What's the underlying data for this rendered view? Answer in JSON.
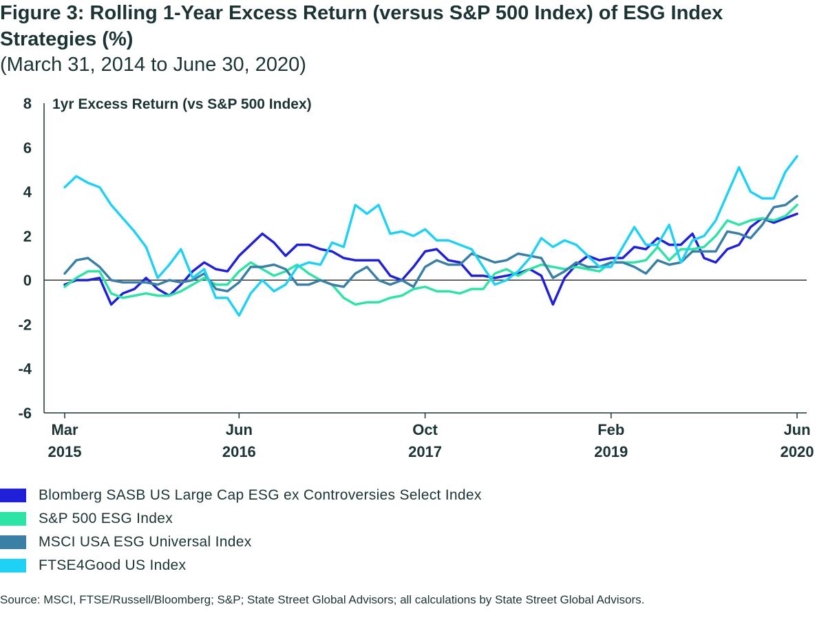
{
  "title": "Figure 3: Rolling 1-Year Excess Return (versus S&P 500 Index) of ESG Index Strategies (%)",
  "subtitle": "(March 31, 2014 to June 30, 2020)",
  "source": "Source: MSCI, FTSE/Russell/Bloomberg; S&P; State Street Global Advisors; all calculations by State Street Global Advisors.",
  "colors": {
    "axis": "#1b3333",
    "zero_line": "#333333"
  },
  "chart_data": {
    "type": "line",
    "title": "Figure 3: Rolling 1-Year Excess Return (versus S&P 500 Index) of ESG Index Strategies (%)",
    "ylabel": "1yr Excess Return (vs S&P 500 Index)",
    "ylim": [
      -6,
      8
    ],
    "yticks": [
      -6,
      -4,
      -2,
      0,
      2,
      4,
      6,
      8
    ],
    "xlim": [
      "2015-03",
      "2020-06"
    ],
    "xticks": [
      {
        "x": "2015-03",
        "label1": "Mar",
        "label2": "2015"
      },
      {
        "x": "2016-06",
        "label1": "Jun",
        "label2": "2016"
      },
      {
        "x": "2017-10",
        "label1": "Oct",
        "label2": "2017"
      },
      {
        "x": "2019-02",
        "label1": "Feb",
        "label2": "2019"
      },
      {
        "x": "2020-06",
        "label1": "Jun",
        "label2": "2020"
      }
    ],
    "grid": false,
    "legend_placement": "bottom",
    "series": [
      {
        "name": "Blomberg SASB US Large Cap ESG ex Controversies Select Index",
        "color": "#2020d8",
        "points": [
          [
            "2015-03",
            -0.2
          ],
          [
            "2015-04",
            0.0
          ],
          [
            "2015-05",
            0.0
          ],
          [
            "2015-06",
            0.1
          ],
          [
            "2015-07",
            -1.1
          ],
          [
            "2015-08",
            -0.6
          ],
          [
            "2015-09",
            -0.4
          ],
          [
            "2015-10",
            0.1
          ],
          [
            "2015-11",
            -0.4
          ],
          [
            "2015-12",
            -0.7
          ],
          [
            "2016-01",
            -0.2
          ],
          [
            "2016-02",
            0.4
          ],
          [
            "2016-03",
            0.8
          ],
          [
            "2016-04",
            0.5
          ],
          [
            "2016-05",
            0.4
          ],
          [
            "2016-06",
            1.1
          ],
          [
            "2016-07",
            1.6
          ],
          [
            "2016-08",
            2.1
          ],
          [
            "2016-09",
            1.7
          ],
          [
            "2016-10",
            1.1
          ],
          [
            "2016-11",
            1.6
          ],
          [
            "2016-12",
            1.6
          ],
          [
            "2017-01",
            1.4
          ],
          [
            "2017-02",
            1.3
          ],
          [
            "2017-03",
            1.0
          ],
          [
            "2017-04",
            0.9
          ],
          [
            "2017-05",
            0.9
          ],
          [
            "2017-06",
            0.9
          ],
          [
            "2017-07",
            0.2
          ],
          [
            "2017-08",
            0.0
          ],
          [
            "2017-09",
            0.6
          ],
          [
            "2017-10",
            1.3
          ],
          [
            "2017-11",
            1.4
          ],
          [
            "2017-12",
            0.9
          ],
          [
            "2018-01",
            0.8
          ],
          [
            "2018-02",
            0.2
          ],
          [
            "2018-03",
            0.2
          ],
          [
            "2018-04",
            0.1
          ],
          [
            "2018-05",
            0.2
          ],
          [
            "2018-06",
            0.3
          ],
          [
            "2018-07",
            0.5
          ],
          [
            "2018-08",
            0.2
          ],
          [
            "2018-09",
            -1.1
          ],
          [
            "2018-10",
            0.1
          ],
          [
            "2018-11",
            0.7
          ],
          [
            "2018-12",
            1.1
          ],
          [
            "2019-01",
            0.9
          ],
          [
            "2019-02",
            1.0
          ],
          [
            "2019-03",
            1.0
          ],
          [
            "2019-04",
            1.5
          ],
          [
            "2019-05",
            1.4
          ],
          [
            "2019-06",
            1.9
          ],
          [
            "2019-07",
            1.6
          ],
          [
            "2019-08",
            1.6
          ],
          [
            "2019-09",
            2.1
          ],
          [
            "2019-10",
            1.0
          ],
          [
            "2019-11",
            0.8
          ],
          [
            "2019-12",
            1.4
          ],
          [
            "2020-01",
            1.6
          ],
          [
            "2020-02",
            2.4
          ],
          [
            "2020-03",
            2.8
          ],
          [
            "2020-04",
            2.6
          ],
          [
            "2020-05",
            2.8
          ],
          [
            "2020-06",
            3.0
          ]
        ]
      },
      {
        "name": "S&P 500 ESG Index",
        "color": "#2ee3a6",
        "points": [
          [
            "2015-03",
            -0.3
          ],
          [
            "2015-04",
            0.1
          ],
          [
            "2015-05",
            0.4
          ],
          [
            "2015-06",
            0.4
          ],
          [
            "2015-07",
            -0.6
          ],
          [
            "2015-08",
            -0.8
          ],
          [
            "2015-09",
            -0.7
          ],
          [
            "2015-10",
            -0.6
          ],
          [
            "2015-11",
            -0.7
          ],
          [
            "2015-12",
            -0.7
          ],
          [
            "2016-01",
            -0.5
          ],
          [
            "2016-02",
            -0.2
          ],
          [
            "2016-03",
            0.1
          ],
          [
            "2016-04",
            -0.2
          ],
          [
            "2016-05",
            -0.2
          ],
          [
            "2016-06",
            0.4
          ],
          [
            "2016-07",
            0.8
          ],
          [
            "2016-08",
            0.5
          ],
          [
            "2016-09",
            0.2
          ],
          [
            "2016-10",
            0.4
          ],
          [
            "2016-11",
            0.7
          ],
          [
            "2016-12",
            0.3
          ],
          [
            "2017-01",
            0.0
          ],
          [
            "2017-02",
            -0.2
          ],
          [
            "2017-03",
            -0.8
          ],
          [
            "2017-04",
            -1.1
          ],
          [
            "2017-05",
            -1.0
          ],
          [
            "2017-06",
            -1.0
          ],
          [
            "2017-07",
            -0.8
          ],
          [
            "2017-08",
            -0.7
          ],
          [
            "2017-09",
            -0.4
          ],
          [
            "2017-10",
            -0.3
          ],
          [
            "2017-11",
            -0.5
          ],
          [
            "2017-12",
            -0.5
          ],
          [
            "2018-01",
            -0.6
          ],
          [
            "2018-02",
            -0.4
          ],
          [
            "2018-03",
            -0.4
          ],
          [
            "2018-04",
            0.3
          ],
          [
            "2018-05",
            0.5
          ],
          [
            "2018-06",
            0.2
          ],
          [
            "2018-07",
            0.5
          ],
          [
            "2018-08",
            0.7
          ],
          [
            "2018-09",
            0.6
          ],
          [
            "2018-10",
            0.5
          ],
          [
            "2018-11",
            0.6
          ],
          [
            "2018-12",
            0.5
          ],
          [
            "2019-01",
            0.4
          ],
          [
            "2019-02",
            0.8
          ],
          [
            "2019-03",
            0.8
          ],
          [
            "2019-04",
            0.8
          ],
          [
            "2019-05",
            0.9
          ],
          [
            "2019-06",
            1.5
          ],
          [
            "2019-07",
            0.9
          ],
          [
            "2019-08",
            1.4
          ],
          [
            "2019-09",
            1.4
          ],
          [
            "2019-10",
            1.5
          ],
          [
            "2019-11",
            2.0
          ],
          [
            "2019-12",
            2.7
          ],
          [
            "2020-01",
            2.5
          ],
          [
            "2020-02",
            2.7
          ],
          [
            "2020-03",
            2.8
          ],
          [
            "2020-04",
            2.7
          ],
          [
            "2020-05",
            2.9
          ],
          [
            "2020-06",
            3.4
          ]
        ]
      },
      {
        "name": "MSCI USA ESG Universal Index",
        "color": "#3a7fa6",
        "points": [
          [
            "2015-03",
            0.3
          ],
          [
            "2015-04",
            0.9
          ],
          [
            "2015-05",
            1.0
          ],
          [
            "2015-06",
            0.6
          ],
          [
            "2015-07",
            0.0
          ],
          [
            "2015-08",
            -0.1
          ],
          [
            "2015-09",
            -0.1
          ],
          [
            "2015-10",
            -0.1
          ],
          [
            "2015-11",
            -0.2
          ],
          [
            "2015-12",
            0.0
          ],
          [
            "2016-01",
            -0.1
          ],
          [
            "2016-02",
            0.0
          ],
          [
            "2016-03",
            0.3
          ],
          [
            "2016-04",
            -0.4
          ],
          [
            "2016-05",
            -0.5
          ],
          [
            "2016-06",
            -0.1
          ],
          [
            "2016-07",
            0.6
          ],
          [
            "2016-08",
            0.6
          ],
          [
            "2016-09",
            0.7
          ],
          [
            "2016-10",
            0.5
          ],
          [
            "2016-11",
            -0.2
          ],
          [
            "2016-12",
            -0.2
          ],
          [
            "2017-01",
            0.0
          ],
          [
            "2017-02",
            -0.2
          ],
          [
            "2017-03",
            -0.3
          ],
          [
            "2017-04",
            0.3
          ],
          [
            "2017-05",
            0.6
          ],
          [
            "2017-06",
            0.0
          ],
          [
            "2017-07",
            -0.2
          ],
          [
            "2017-08",
            0.0
          ],
          [
            "2017-09",
            -0.3
          ],
          [
            "2017-10",
            0.6
          ],
          [
            "2017-11",
            0.9
          ],
          [
            "2017-12",
            0.7
          ],
          [
            "2018-01",
            0.7
          ],
          [
            "2018-02",
            1.2
          ],
          [
            "2018-03",
            1.0
          ],
          [
            "2018-04",
            0.8
          ],
          [
            "2018-05",
            0.9
          ],
          [
            "2018-06",
            1.2
          ],
          [
            "2018-07",
            1.1
          ],
          [
            "2018-08",
            1.0
          ],
          [
            "2018-09",
            0.1
          ],
          [
            "2018-10",
            0.4
          ],
          [
            "2018-11",
            0.8
          ],
          [
            "2018-12",
            0.6
          ],
          [
            "2019-01",
            0.6
          ],
          [
            "2019-02",
            0.8
          ],
          [
            "2019-03",
            0.8
          ],
          [
            "2019-04",
            0.6
          ],
          [
            "2019-05",
            0.3
          ],
          [
            "2019-06",
            0.9
          ],
          [
            "2019-07",
            0.7
          ],
          [
            "2019-08",
            0.8
          ],
          [
            "2019-09",
            1.3
          ],
          [
            "2019-10",
            1.3
          ],
          [
            "2019-11",
            1.3
          ],
          [
            "2019-12",
            2.2
          ],
          [
            "2020-01",
            2.1
          ],
          [
            "2020-02",
            1.9
          ],
          [
            "2020-03",
            2.5
          ],
          [
            "2020-04",
            3.3
          ],
          [
            "2020-05",
            3.4
          ],
          [
            "2020-06",
            3.8
          ]
        ]
      },
      {
        "name": "FTSE4Good US Index",
        "color": "#1fd2f5",
        "points": [
          [
            "2015-03",
            4.2
          ],
          [
            "2015-04",
            4.7
          ],
          [
            "2015-05",
            4.4
          ],
          [
            "2015-06",
            4.2
          ],
          [
            "2015-07",
            3.4
          ],
          [
            "2015-08",
            2.8
          ],
          [
            "2015-09",
            2.2
          ],
          [
            "2015-10",
            1.5
          ],
          [
            "2015-11",
            0.1
          ],
          [
            "2015-12",
            0.7
          ],
          [
            "2016-01",
            1.4
          ],
          [
            "2016-02",
            0.1
          ],
          [
            "2016-03",
            0.5
          ],
          [
            "2016-04",
            -0.8
          ],
          [
            "2016-05",
            -0.8
          ],
          [
            "2016-06",
            -1.6
          ],
          [
            "2016-07",
            -0.6
          ],
          [
            "2016-08",
            0.0
          ],
          [
            "2016-09",
            -0.5
          ],
          [
            "2016-10",
            -0.2
          ],
          [
            "2016-11",
            0.6
          ],
          [
            "2016-12",
            0.8
          ],
          [
            "2017-01",
            0.7
          ],
          [
            "2017-02",
            1.7
          ],
          [
            "2017-03",
            1.5
          ],
          [
            "2017-04",
            3.4
          ],
          [
            "2017-05",
            3.0
          ],
          [
            "2017-06",
            3.4
          ],
          [
            "2017-07",
            2.1
          ],
          [
            "2017-08",
            2.2
          ],
          [
            "2017-09",
            2.0
          ],
          [
            "2017-10",
            2.3
          ],
          [
            "2017-11",
            1.8
          ],
          [
            "2017-12",
            1.8
          ],
          [
            "2018-01",
            1.6
          ],
          [
            "2018-02",
            1.4
          ],
          [
            "2018-03",
            0.6
          ],
          [
            "2018-04",
            -0.2
          ],
          [
            "2018-05",
            0.0
          ],
          [
            "2018-06",
            0.4
          ],
          [
            "2018-07",
            1.0
          ],
          [
            "2018-08",
            1.9
          ],
          [
            "2018-09",
            1.5
          ],
          [
            "2018-10",
            1.8
          ],
          [
            "2018-11",
            1.6
          ],
          [
            "2018-12",
            1.1
          ],
          [
            "2019-01",
            0.6
          ],
          [
            "2019-02",
            0.6
          ],
          [
            "2019-03",
            1.5
          ],
          [
            "2019-04",
            2.4
          ],
          [
            "2019-05",
            1.6
          ],
          [
            "2019-06",
            1.6
          ],
          [
            "2019-07",
            2.5
          ],
          [
            "2019-08",
            0.8
          ],
          [
            "2019-09",
            1.8
          ],
          [
            "2019-10",
            2.0
          ],
          [
            "2019-11",
            2.7
          ],
          [
            "2019-12",
            3.9
          ],
          [
            "2020-01",
            5.1
          ],
          [
            "2020-02",
            4.0
          ],
          [
            "2020-03",
            3.7
          ],
          [
            "2020-04",
            3.7
          ],
          [
            "2020-05",
            4.9
          ],
          [
            "2020-06",
            5.6
          ]
        ]
      }
    ]
  }
}
